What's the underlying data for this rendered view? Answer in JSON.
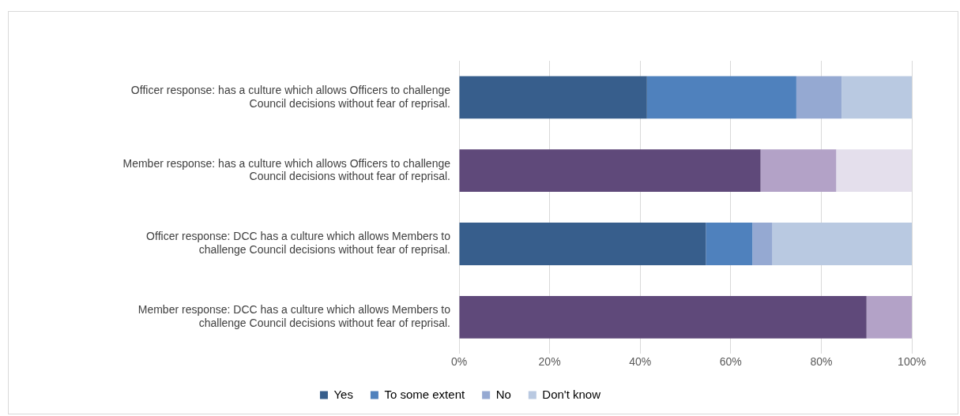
{
  "chart_data": {
    "type": "bar",
    "orientation": "horizontal",
    "stacked": true,
    "categories": [
      "Officer response: has a culture which allows Officers to challenge Council decisions without fear of reprisal.",
      "Member response: has a culture which allows Officers to challenge Council decisions without fear of reprisal.",
      "Officer response: DCC has a culture which allows Members to challenge Council decisions without fear of reprisal.",
      "Member response: DCC has a culture which allows Members to challenge Council decisions without fear of reprisal."
    ],
    "series": [
      {
        "name": "Yes",
        "color": "#375e8c",
        "colors": [
          "#375e8c",
          "#5f497a",
          "#375e8c",
          "#5f497a"
        ],
        "values": [
          41.5,
          66.6,
          54.5,
          90
        ]
      },
      {
        "name": "To some extent",
        "color": "#4f81bd",
        "colors": [
          "#4f81bd",
          "#b3a2c7",
          "#4f81bd",
          "#b3a2c7"
        ],
        "values": [
          33,
          16.7,
          10.3,
          10
        ]
      },
      {
        "name": "No",
        "color": "#95a9d2",
        "colors": [
          "#95a9d2",
          "#95a9d2",
          "#95a9d2",
          "#95a9d2"
        ],
        "values": [
          10,
          0,
          4.4,
          0
        ]
      },
      {
        "name": "Don't know",
        "color": "#b9c9e1",
        "colors": [
          "#b9c9e1",
          "#e4dfec",
          "#b9c9e1",
          "#e4dfec"
        ],
        "values": [
          15.5,
          16.7,
          30.8,
          0
        ]
      }
    ],
    "xlim": [
      0,
      100
    ],
    "xticks": [
      {
        "value": 0,
        "label": "0%"
      },
      {
        "value": 20,
        "label": "20%"
      },
      {
        "value": 40,
        "label": "40%"
      },
      {
        "value": 60,
        "label": "60%"
      },
      {
        "value": 80,
        "label": "80%"
      },
      {
        "value": 100,
        "label": "100%"
      }
    ],
    "grid": "x",
    "legend": "bottom"
  }
}
